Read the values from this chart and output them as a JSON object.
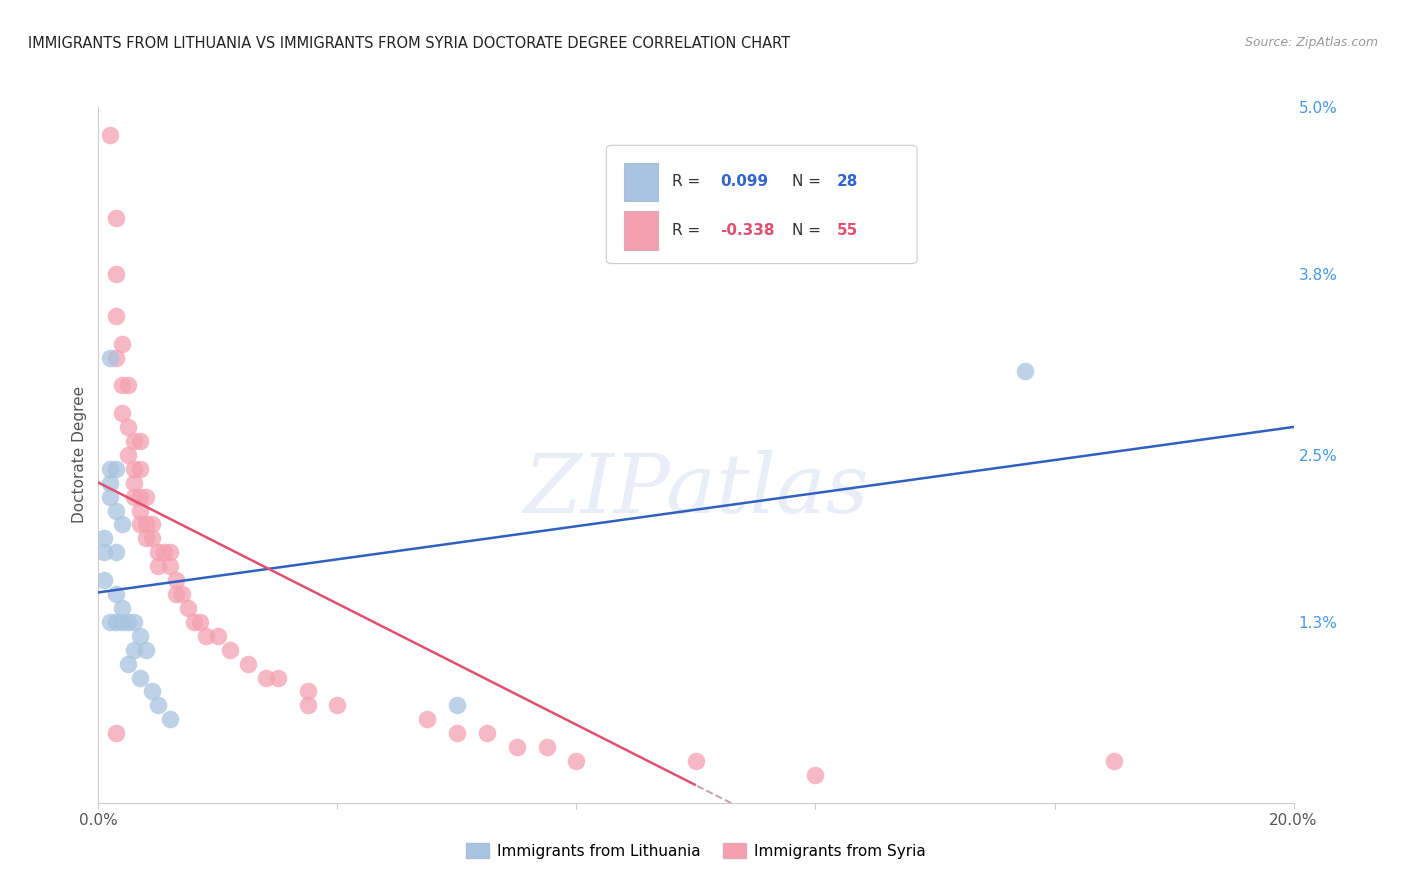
{
  "title": "IMMIGRANTS FROM LITHUANIA VS IMMIGRANTS FROM SYRIA DOCTORATE DEGREE CORRELATION CHART",
  "source": "Source: ZipAtlas.com",
  "ylabel": "Doctorate Degree",
  "xlim": [
    0.0,
    0.2
  ],
  "ylim": [
    0.0,
    0.05
  ],
  "yticks": [
    0.0,
    0.013,
    0.025,
    0.038,
    0.05
  ],
  "yticklabels": [
    "",
    "1.3%",
    "2.5%",
    "3.8%",
    "5.0%"
  ],
  "xtick_positions": [
    0.0,
    0.04,
    0.08,
    0.12,
    0.16,
    0.2
  ],
  "xticklabels": [
    "0.0%",
    "",
    "",
    "",
    "",
    "20.0%"
  ],
  "lithuania_color": "#a8c4e0",
  "syria_color": "#f4a0b0",
  "lithuania_line_color": "#3060c0",
  "syria_line_color": "#e05070",
  "syria_line_dashed_color": "#c8a0a8",
  "background_color": "#ffffff",
  "grid_color": "#dddddd",
  "lithuania_scatter_x": [
    0.001,
    0.001,
    0.001,
    0.002,
    0.002,
    0.002,
    0.002,
    0.002,
    0.003,
    0.003,
    0.003,
    0.003,
    0.003,
    0.004,
    0.004,
    0.004,
    0.005,
    0.005,
    0.006,
    0.006,
    0.007,
    0.007,
    0.008,
    0.009,
    0.01,
    0.012,
    0.06,
    0.155
  ],
  "lithuania_scatter_y": [
    0.016,
    0.018,
    0.019,
    0.013,
    0.022,
    0.023,
    0.024,
    0.032,
    0.013,
    0.015,
    0.018,
    0.021,
    0.024,
    0.013,
    0.014,
    0.02,
    0.01,
    0.013,
    0.011,
    0.013,
    0.009,
    0.012,
    0.011,
    0.008,
    0.007,
    0.006,
    0.007,
    0.031
  ],
  "syria_scatter_x": [
    0.002,
    0.003,
    0.003,
    0.003,
    0.003,
    0.004,
    0.004,
    0.004,
    0.005,
    0.005,
    0.005,
    0.006,
    0.006,
    0.006,
    0.006,
    0.007,
    0.007,
    0.007,
    0.007,
    0.007,
    0.008,
    0.008,
    0.008,
    0.009,
    0.009,
    0.01,
    0.01,
    0.011,
    0.012,
    0.012,
    0.013,
    0.013,
    0.014,
    0.015,
    0.016,
    0.017,
    0.018,
    0.02,
    0.022,
    0.025,
    0.028,
    0.03,
    0.035,
    0.035,
    0.04,
    0.055,
    0.06,
    0.065,
    0.07,
    0.075,
    0.08,
    0.1,
    0.12,
    0.17,
    0.003
  ],
  "syria_scatter_y": [
    0.048,
    0.042,
    0.038,
    0.035,
    0.032,
    0.033,
    0.03,
    0.028,
    0.03,
    0.027,
    0.025,
    0.026,
    0.024,
    0.023,
    0.022,
    0.026,
    0.024,
    0.022,
    0.021,
    0.02,
    0.022,
    0.02,
    0.019,
    0.02,
    0.019,
    0.018,
    0.017,
    0.018,
    0.018,
    0.017,
    0.016,
    0.015,
    0.015,
    0.014,
    0.013,
    0.013,
    0.012,
    0.012,
    0.011,
    0.01,
    0.009,
    0.009,
    0.008,
    0.007,
    0.007,
    0.006,
    0.005,
    0.005,
    0.004,
    0.004,
    0.003,
    0.003,
    0.002,
    0.003,
    0.005
  ]
}
